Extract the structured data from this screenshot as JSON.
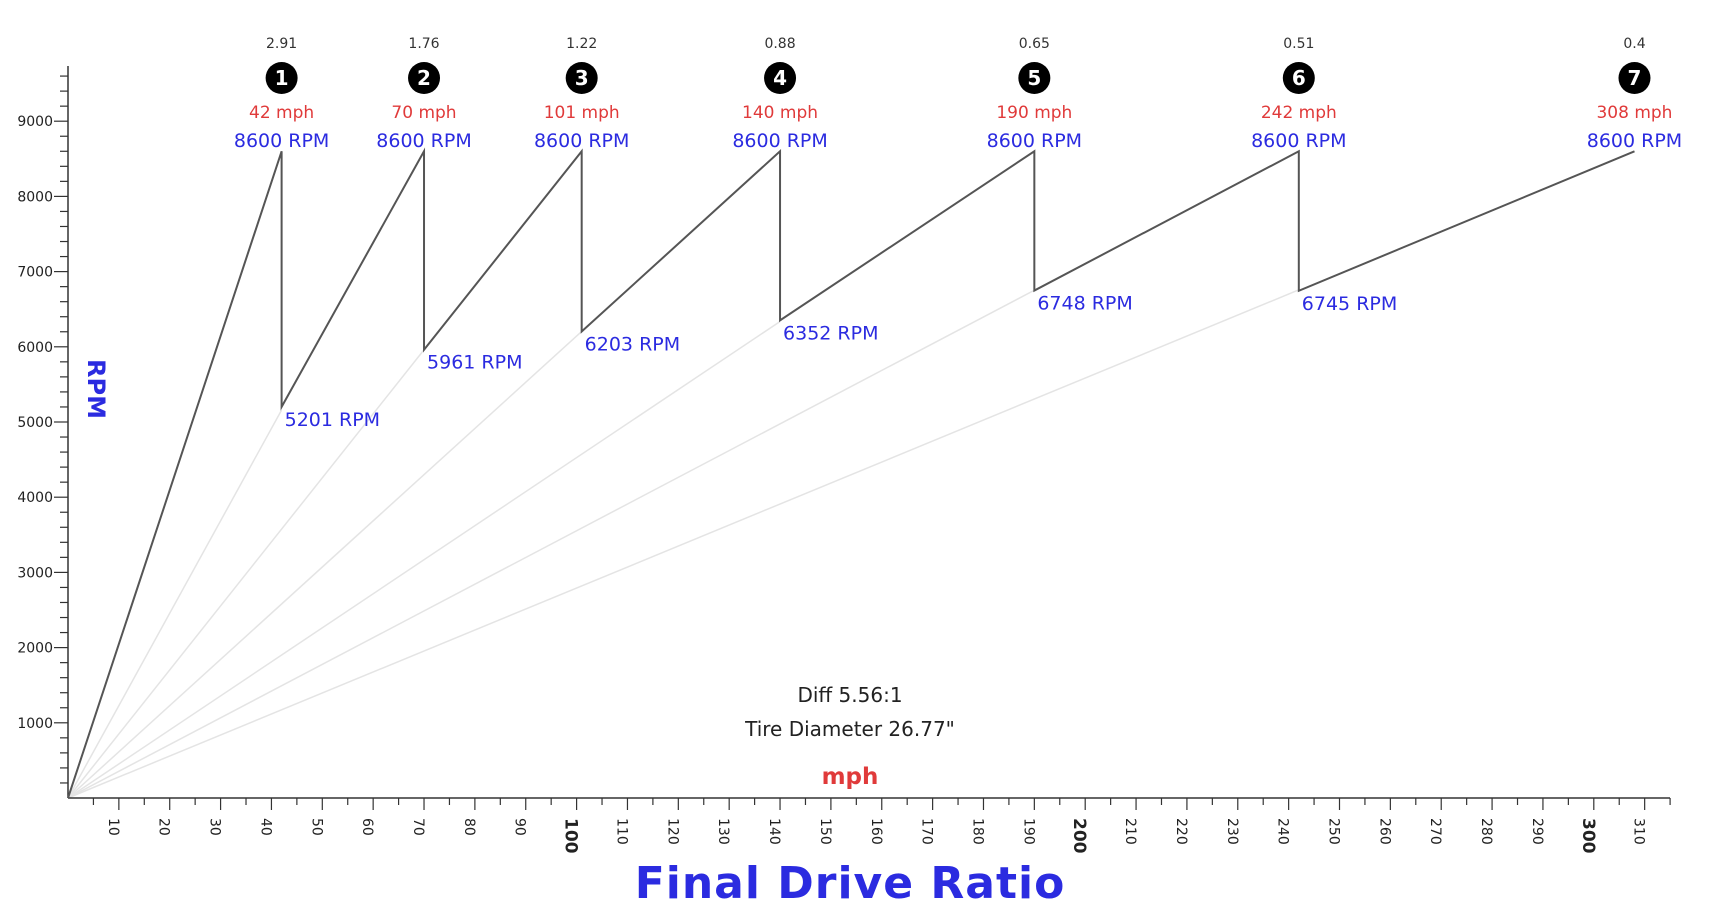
{
  "chart_data": {
    "type": "line",
    "title": "Final Drive Ratio",
    "xlabel": "mph",
    "ylabel": "RPM",
    "xlim": [
      0,
      315
    ],
    "ylim": [
      0,
      9800
    ],
    "x_ticks": [
      10,
      20,
      30,
      40,
      50,
      60,
      70,
      80,
      90,
      100,
      110,
      120,
      130,
      140,
      150,
      160,
      170,
      180,
      190,
      200,
      210,
      220,
      230,
      240,
      250,
      260,
      270,
      280,
      290,
      300,
      310
    ],
    "x_ticks_bold": [
      100,
      200,
      300
    ],
    "y_ticks": [
      1000,
      2000,
      3000,
      4000,
      5000,
      6000,
      7000,
      8000,
      9000
    ],
    "annotations": {
      "diff": "Diff 5.56:1",
      "tire": "Tire Diameter 26.77\""
    },
    "gears": [
      {
        "gear": 1,
        "badge": "❶",
        "ratio": "2.91",
        "shift_mph": 42,
        "mph_label": "42 mph",
        "rpm_top": 8600,
        "rpm_top_label": "8600 RPM",
        "rpm_drop": 5201,
        "rpm_drop_label": "5201 RPM"
      },
      {
        "gear": 2,
        "badge": "❷",
        "ratio": "1.76",
        "shift_mph": 70,
        "mph_label": "70 mph",
        "rpm_top": 8600,
        "rpm_top_label": "8600 RPM",
        "rpm_drop": 5961,
        "rpm_drop_label": "5961 RPM"
      },
      {
        "gear": 3,
        "badge": "❸",
        "ratio": "1.22",
        "shift_mph": 101,
        "mph_label": "101 mph",
        "rpm_top": 8600,
        "rpm_top_label": "8600 RPM",
        "rpm_drop": 6203,
        "rpm_drop_label": "6203 RPM"
      },
      {
        "gear": 4,
        "badge": "❹",
        "ratio": "0.88",
        "shift_mph": 140,
        "mph_label": "140 mph",
        "rpm_top": 8600,
        "rpm_top_label": "8600 RPM",
        "rpm_drop": 6352,
        "rpm_drop_label": "6352 RPM"
      },
      {
        "gear": 5,
        "badge": "❺",
        "ratio": "0.65",
        "shift_mph": 190,
        "mph_label": "190 mph",
        "rpm_top": 8600,
        "rpm_top_label": "8600 RPM",
        "rpm_drop": 6748,
        "rpm_drop_label": "6748 RPM"
      },
      {
        "gear": 6,
        "badge": "❻",
        "ratio": "0.51",
        "shift_mph": 242,
        "mph_label": "242 mph",
        "rpm_top": 8600,
        "rpm_top_label": "8600 RPM",
        "rpm_drop": 6745,
        "rpm_drop_label": "6745 RPM"
      },
      {
        "gear": 7,
        "badge": "❼",
        "ratio": "0.4",
        "shift_mph": 308,
        "mph_label": "308 mph",
        "rpm_top": 8600,
        "rpm_top_label": "8600 RPM"
      }
    ],
    "colors": {
      "line": "#555555",
      "guide": "#e4e4e4",
      "mph_text": "#e03a3a",
      "rpm_text": "#2b2be0",
      "ratio_text": "#333333",
      "axis": "#333333"
    }
  }
}
